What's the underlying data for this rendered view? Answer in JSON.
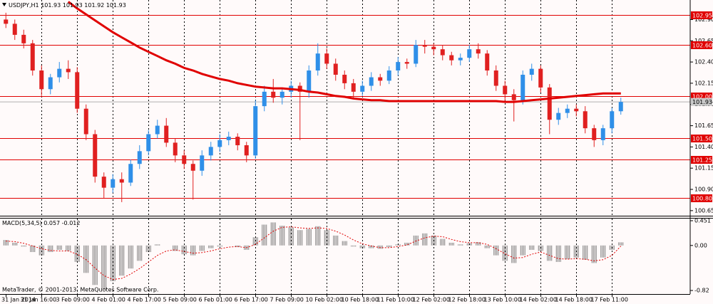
{
  "chart_data": [
    {
      "type": "candlestick",
      "title": "USDJPY,H1",
      "header_values": [
        101.93,
        101.93,
        101.92,
        101.93
      ],
      "categories": [
        "31 Jan 2014",
        null,
        null,
        null,
        "31 Jan 16:00",
        null,
        null,
        null,
        "3 Feb 09:00",
        null,
        null,
        null,
        "4 Feb 01:00",
        null,
        null,
        null,
        "4 Feb 17:00",
        null,
        null,
        null,
        "5 Feb 09:00",
        null,
        null,
        null,
        "6 Feb 01:00",
        null,
        null,
        null,
        "6 Feb 17:00",
        null,
        null,
        null,
        "7 Feb 09:00",
        null,
        null,
        null,
        "10 Feb 02:00",
        null,
        null,
        null,
        "10 Feb 18:00",
        null,
        null,
        null,
        "11 Feb 10:00",
        null,
        null,
        null,
        "12 Feb 02:00",
        null,
        null,
        null,
        "12 Feb 18:00",
        null,
        null,
        null,
        "13 Feb 10:00",
        null,
        null,
        null,
        "14 Feb 02:00",
        null,
        null,
        null,
        "14 Feb 18:00",
        null,
        null,
        null,
        "17 Feb 11:00",
        null
      ],
      "open": [
        102.9,
        102.85,
        102.72,
        102.62,
        102.3,
        102.08,
        102.22,
        102.32,
        102.28,
        101.85,
        101.55,
        101.05,
        100.92,
        101.02,
        100.98,
        101.2,
        101.35,
        101.55,
        101.65,
        101.45,
        101.3,
        101.2,
        101.12,
        101.3,
        101.4,
        101.48,
        101.52,
        101.42,
        101.3,
        101.88,
        102.05,
        101.98,
        102.05,
        102.12,
        102.05,
        102.3,
        102.5,
        102.38,
        102.25,
        102.15,
        102.05,
        102.12,
        102.22,
        102.18,
        102.3,
        102.4,
        102.38,
        102.6,
        102.58,
        102.55,
        102.48,
        102.42,
        102.45,
        102.55,
        102.5,
        102.3,
        102.12,
        102.02,
        101.95,
        102.25,
        102.32,
        102.1,
        101.72,
        101.8,
        101.85,
        101.82,
        101.62,
        101.48,
        101.62,
        101.82
      ],
      "high": [
        102.98,
        102.9,
        102.78,
        102.66,
        102.36,
        102.26,
        102.4,
        102.42,
        102.34,
        101.9,
        101.6,
        101.1,
        101.08,
        101.1,
        101.25,
        101.42,
        101.6,
        101.72,
        101.74,
        101.5,
        101.36,
        101.24,
        101.36,
        101.46,
        101.55,
        101.58,
        101.56,
        101.46,
        101.95,
        102.12,
        102.2,
        102.1,
        102.18,
        102.16,
        102.36,
        102.62,
        102.56,
        102.44,
        102.3,
        102.2,
        102.18,
        102.28,
        102.26,
        102.35,
        102.46,
        102.44,
        102.66,
        102.66,
        102.62,
        102.6,
        102.52,
        102.5,
        102.6,
        102.62,
        102.54,
        102.36,
        102.18,
        102.08,
        102.3,
        102.38,
        102.36,
        102.14,
        101.86,
        101.9,
        101.9,
        101.88,
        101.66,
        101.66,
        101.86,
        101.98
      ],
      "low": [
        102.8,
        102.66,
        102.56,
        102.24,
        102.0,
        102.02,
        102.16,
        102.2,
        101.8,
        101.48,
        100.98,
        100.8,
        100.86,
        100.75,
        100.94,
        101.14,
        101.3,
        101.5,
        101.4,
        101.22,
        101.14,
        100.78,
        101.06,
        101.24,
        101.34,
        101.42,
        101.36,
        101.22,
        101.26,
        101.82,
        101.92,
        101.9,
        101.98,
        101.48,
        101.98,
        102.24,
        102.32,
        102.18,
        102.08,
        101.98,
        102.0,
        102.06,
        102.12,
        102.14,
        102.24,
        102.32,
        102.34,
        102.5,
        102.48,
        102.42,
        102.36,
        102.36,
        102.4,
        102.44,
        102.24,
        102.06,
        101.94,
        101.7,
        101.9,
        102.18,
        102.04,
        101.55,
        101.66,
        101.74,
        101.76,
        101.56,
        101.4,
        101.42,
        101.56,
        101.78
      ],
      "close": [
        102.85,
        102.72,
        102.62,
        102.3,
        102.08,
        102.22,
        102.32,
        102.28,
        101.85,
        101.55,
        101.05,
        100.92,
        101.02,
        100.98,
        101.2,
        101.35,
        101.55,
        101.65,
        101.45,
        101.3,
        101.2,
        101.12,
        101.3,
        101.4,
        101.48,
        101.52,
        101.42,
        101.3,
        101.88,
        102.05,
        101.98,
        102.05,
        102.12,
        102.05,
        102.3,
        102.5,
        102.38,
        102.25,
        102.15,
        102.05,
        102.12,
        102.22,
        102.18,
        102.3,
        102.4,
        102.38,
        102.6,
        102.58,
        102.55,
        102.48,
        102.42,
        102.45,
        102.55,
        102.5,
        102.3,
        102.12,
        102.02,
        101.95,
        102.25,
        102.32,
        102.1,
        101.72,
        101.8,
        101.85,
        101.82,
        101.62,
        101.48,
        101.62,
        101.82,
        101.93
      ],
      "up_color": "#2f8fe8",
      "down_color": "#e02020",
      "moving_average": {
        "color": "#e00000",
        "values": [
          null,
          null,
          null,
          null,
          null,
          null,
          null,
          103.11,
          103.03,
          102.96,
          102.89,
          102.82,
          102.75,
          102.69,
          102.63,
          102.57,
          102.52,
          102.47,
          102.42,
          102.38,
          102.33,
          102.3,
          102.26,
          102.23,
          102.2,
          102.18,
          102.15,
          102.13,
          102.11,
          102.1,
          102.09,
          102.09,
          102.08,
          102.07,
          102.05,
          102.04,
          102.02,
          102.0,
          101.99,
          101.97,
          101.96,
          101.95,
          101.95,
          101.94,
          101.94,
          101.94,
          101.94,
          101.94,
          101.94,
          101.94,
          101.94,
          101.94,
          101.94,
          101.94,
          101.94,
          101.94,
          101.93,
          101.93,
          101.94,
          101.95,
          101.96,
          101.97,
          101.98,
          101.99,
          102.0,
          102.01,
          102.02,
          102.03,
          102.03,
          102.03
        ]
      },
      "levels_color": "#e00000",
      "levels": [
        102.95,
        {
          "value": 102.6,
          "label": "102.60"
        },
        {
          "value": 102.0,
          "label": "102.00"
        },
        {
          "value": 101.5,
          "label": "101.50"
        },
        101.25,
        {
          "value": 100.8,
          "label": "100.80"
        }
      ],
      "current_price": 101.93,
      "ylim": [
        100.59,
        103.13
      ],
      "yticks": [
        {
          "value": 102.9,
          "label": "102.90"
        },
        102.65,
        {
          "value": 102.4,
          "label": "102.40"
        },
        102.15,
        {
          "value": 101.9,
          "label": "101.90"
        },
        101.65,
        {
          "value": 101.4,
          "label": "101.40"
        },
        101.15,
        {
          "value": 100.9,
          "label": "100.90"
        },
        100.65
      ],
      "grid": true
    },
    {
      "type": "macd",
      "title": "MACD(5,34,5)",
      "header_values": [
        0.057,
        -0.012
      ],
      "histogram_color": "#808080",
      "signal_color": "#e00000",
      "histogram": [
        0.1,
        0.05,
        -0.02,
        -0.12,
        -0.18,
        -0.12,
        -0.08,
        -0.1,
        -0.3,
        -0.5,
        -0.72,
        -0.8,
        -0.65,
        -0.55,
        -0.42,
        -0.28,
        -0.12,
        0.02,
        0.0,
        -0.1,
        -0.16,
        -0.18,
        -0.1,
        -0.05,
        -0.02,
        0.0,
        -0.03,
        -0.08,
        0.15,
        0.38,
        0.42,
        0.36,
        0.33,
        0.28,
        0.3,
        0.35,
        0.28,
        0.18,
        0.08,
        -0.02,
        -0.05,
        -0.05,
        -0.06,
        -0.03,
        0.02,
        0.05,
        0.18,
        0.22,
        0.18,
        0.12,
        0.05,
        0.02,
        0.04,
        0.06,
        -0.05,
        -0.18,
        -0.28,
        -0.32,
        -0.18,
        -0.08,
        -0.1,
        -0.28,
        -0.3,
        -0.25,
        -0.22,
        -0.26,
        -0.32,
        -0.22,
        -0.08,
        0.057
      ],
      "signal": [
        0.08,
        0.07,
        0.04,
        -0.01,
        -0.06,
        -0.09,
        -0.1,
        -0.1,
        -0.16,
        -0.26,
        -0.41,
        -0.55,
        -0.62,
        -0.6,
        -0.52,
        -0.42,
        -0.3,
        -0.18,
        -0.1,
        -0.08,
        -0.11,
        -0.14,
        -0.13,
        -0.1,
        -0.06,
        -0.03,
        -0.02,
        -0.04,
        0.02,
        0.14,
        0.26,
        0.33,
        0.34,
        0.32,
        0.31,
        0.32,
        0.31,
        0.26,
        0.19,
        0.1,
        0.03,
        -0.01,
        -0.04,
        -0.04,
        -0.02,
        0.01,
        0.08,
        0.14,
        0.17,
        0.16,
        0.11,
        0.07,
        0.05,
        0.05,
        0.02,
        -0.06,
        -0.15,
        -0.23,
        -0.22,
        -0.16,
        -0.12,
        -0.18,
        -0.24,
        -0.25,
        -0.24,
        -0.25,
        -0.28,
        -0.26,
        -0.18,
        -0.012
      ],
      "ylim": [
        -0.82,
        0.451
      ],
      "yticks": [
        0.451,
        {
          "value": 0,
          "label": "0.00"
        },
        -0.82
      ]
    }
  ],
  "footer": "MetaTrader, © 2001-2013, MetaQuotes Software Corp."
}
